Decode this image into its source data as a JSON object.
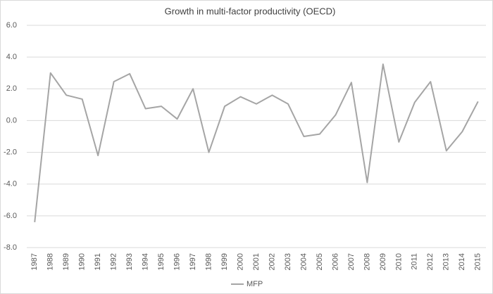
{
  "chart_data": {
    "type": "line",
    "title": "Growth in multi-factor productivity   (OECD)",
    "categories": [
      "1987",
      "1988",
      "1989",
      "1990",
      "1991",
      "1992",
      "1993",
      "1994",
      "1995",
      "1996",
      "1997",
      "1998",
      "1999",
      "2000",
      "2001",
      "2002",
      "2003",
      "2004",
      "2005",
      "2006",
      "2007",
      "2008",
      "2009",
      "2010",
      "2011",
      "2012",
      "2013",
      "2014",
      "2015"
    ],
    "series": [
      {
        "name": "MFP",
        "color": "#a5a5a5",
        "values": [
          -6.4,
          3.0,
          1.6,
          1.35,
          -2.2,
          2.45,
          2.95,
          0.75,
          0.9,
          0.1,
          2.0,
          -2.0,
          0.9,
          1.5,
          1.05,
          1.6,
          1.05,
          -1.0,
          -0.85,
          0.35,
          2.4,
          -3.9,
          3.55,
          -1.35,
          1.15,
          2.45,
          -1.9,
          -0.7,
          1.2
        ]
      }
    ],
    "ylim": [
      -8,
      6
    ],
    "yticks": [
      {
        "value": -8,
        "label": "-8.0"
      },
      {
        "value": -6,
        "label": "-6.0"
      },
      {
        "value": -4,
        "label": "-4.0"
      },
      {
        "value": -2,
        "label": "-2.0"
      },
      {
        "value": 0,
        "label": "0.0"
      },
      {
        "value": 2,
        "label": "2.0"
      },
      {
        "value": 4,
        "label": "4.0"
      },
      {
        "value": 6,
        "label": "6.0"
      }
    ],
    "grid": true,
    "legend": "bottom"
  }
}
